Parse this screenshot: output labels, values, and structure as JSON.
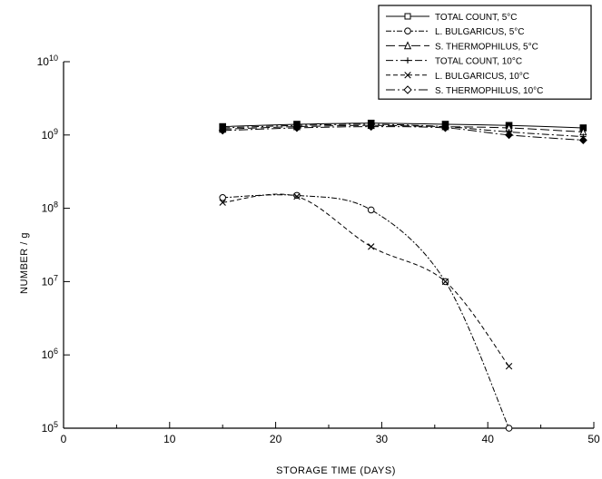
{
  "chart_data": {
    "type": "line",
    "title": "",
    "xlabel": "STORAGE TIME (DAYS)",
    "ylabel": "NUMBER / g",
    "xlim": [
      0,
      50
    ],
    "ylim": [
      100000,
      10000000000
    ],
    "y_scale": "log",
    "x_ticks": [
      "0",
      "10",
      "20",
      "30",
      "40",
      "50"
    ],
    "y_ticks": [
      {
        "value": 100000,
        "base": "10",
        "exp": "5"
      },
      {
        "value": 1000000,
        "base": "10",
        "exp": "6"
      },
      {
        "value": 10000000,
        "base": "10",
        "exp": "7"
      },
      {
        "value": 100000000,
        "base": "10",
        "exp": "8"
      },
      {
        "value": 1000000000,
        "base": "10",
        "exp": "9"
      },
      {
        "value": 10000000000,
        "base": "10",
        "exp": "10"
      }
    ],
    "grid": false,
    "legend_position": "top-right",
    "series": [
      {
        "name": "TOTAL COUNT, 5°C",
        "marker": "square",
        "dash": "",
        "x": [
          15,
          22,
          29,
          36,
          42,
          49
        ],
        "y": [
          1300000000,
          1400000000,
          1450000000,
          1400000000,
          1350000000,
          1250000000
        ]
      },
      {
        "name": "L. BULGARICUS, 5°C",
        "marker": "circle",
        "dash": "6,2,2,2",
        "x": [
          15,
          22,
          29,
          36,
          42
        ],
        "y": [
          140000000,
          150000000,
          95000000,
          10000000,
          100000
        ]
      },
      {
        "name": "S. THERMOPHILUS, 5°C",
        "marker": "triangle",
        "dash": "10,4",
        "x": [
          15,
          22,
          29,
          36,
          42,
          49
        ],
        "y": [
          1200000000,
          1300000000,
          1350000000,
          1300000000,
          1250000000,
          1100000000
        ]
      },
      {
        "name": "TOTAL COUNT, 10°C",
        "marker": "plus",
        "dash": "8,3,2,3",
        "x": [
          15,
          22,
          29,
          36,
          42,
          49
        ],
        "y": [
          1250000000,
          1350000000,
          1400000000,
          1300000000,
          1100000000,
          950000000
        ]
      },
      {
        "name": "L. BULGARICUS, 10°C",
        "marker": "x",
        "dash": "5,3",
        "x": [
          15,
          22,
          29,
          36,
          42
        ],
        "y": [
          120000000,
          145000000,
          30000000,
          10000000,
          700000
        ]
      },
      {
        "name": "S. THERMOPHILUS, 10°C",
        "marker": "diamond",
        "dash": "10,3,2,3",
        "x": [
          15,
          22,
          29,
          36,
          42,
          49
        ],
        "y": [
          1150000000,
          1250000000,
          1300000000,
          1250000000,
          1000000000,
          850000000
        ]
      }
    ]
  }
}
